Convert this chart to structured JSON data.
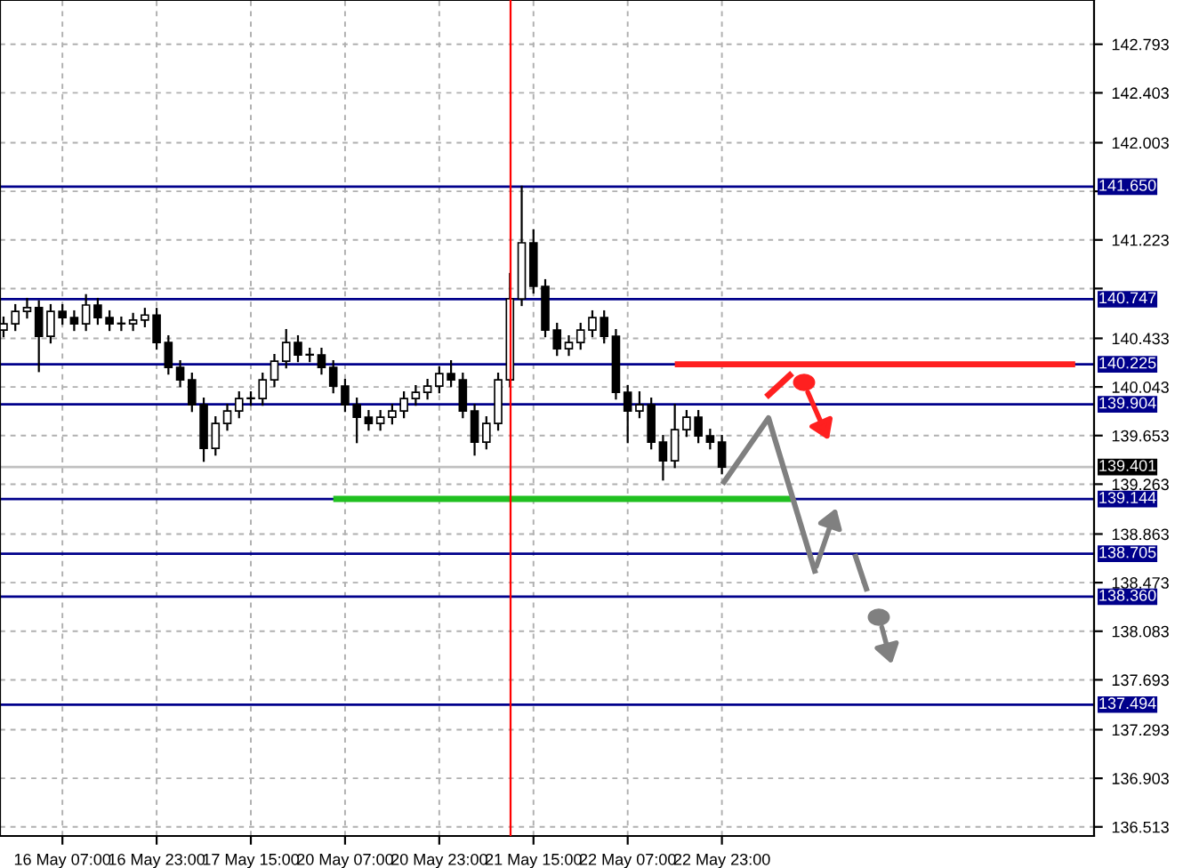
{
  "chart_data": {
    "type": "candlestick",
    "categories": [
      null,
      null,
      null,
      null,
      null,
      "16 May 07:00",
      null,
      null,
      null,
      null,
      null,
      null,
      null,
      "16 May 23:00",
      null,
      null,
      null,
      null,
      null,
      null,
      null,
      "17 May 15:00",
      null,
      null,
      null,
      null,
      null,
      null,
      null,
      "20 May 07:00",
      null,
      null,
      null,
      null,
      null,
      null,
      null,
      "20 May 23:00",
      null,
      null,
      null,
      null,
      null,
      null,
      null,
      "21 May 15:00",
      null,
      null,
      null,
      null,
      null,
      null,
      null,
      "22 May 07:00",
      null,
      null,
      null,
      null,
      null,
      null,
      null,
      "22 May 23:00",
      null,
      null,
      null,
      null,
      null,
      null,
      null,
      null,
      null,
      null,
      null,
      null,
      null,
      null,
      null,
      null,
      null,
      null,
      null,
      null,
      null,
      null,
      null,
      null,
      null,
      null,
      null,
      null,
      null,
      null,
      null
    ],
    "ohlc": [
      [
        140.5,
        140.6,
        140.45,
        140.55
      ],
      [
        140.55,
        140.7,
        140.5,
        140.65
      ],
      [
        140.65,
        140.75,
        140.6,
        140.68
      ],
      [
        140.68,
        140.73,
        140.17,
        140.45
      ],
      [
        140.45,
        140.7,
        140.4,
        140.65
      ],
      [
        140.65,
        140.7,
        140.55,
        140.6
      ],
      [
        140.6,
        140.65,
        140.5,
        140.55
      ],
      [
        140.55,
        140.78,
        140.5,
        140.7
      ],
      [
        140.7,
        140.75,
        140.55,
        140.6
      ],
      [
        140.6,
        140.65,
        140.5,
        140.55
      ],
      [
        140.55,
        140.6,
        140.5,
        140.55
      ],
      [
        140.55,
        140.63,
        140.5,
        140.58
      ],
      [
        140.58,
        140.67,
        140.53,
        140.62
      ],
      [
        140.62,
        140.67,
        140.35,
        140.4
      ],
      [
        140.4,
        140.45,
        140.15,
        140.2
      ],
      [
        140.2,
        140.25,
        140.05,
        140.1
      ],
      [
        140.1,
        140.15,
        139.85,
        139.9
      ],
      [
        139.9,
        139.95,
        139.45,
        139.55
      ],
      [
        139.55,
        139.8,
        139.5,
        139.75
      ],
      [
        139.75,
        139.9,
        139.7,
        139.85
      ],
      [
        139.85,
        140.0,
        139.8,
        139.95
      ],
      [
        139.95,
        140.0,
        139.9,
        139.95
      ],
      [
        139.95,
        140.15,
        139.9,
        140.1
      ],
      [
        140.1,
        140.3,
        140.05,
        140.25
      ],
      [
        140.25,
        140.5,
        140.2,
        140.4
      ],
      [
        140.4,
        140.45,
        140.25,
        140.3
      ],
      [
        140.3,
        140.35,
        140.25,
        140.3
      ],
      [
        140.3,
        140.35,
        140.15,
        140.2
      ],
      [
        140.2,
        140.25,
        140.0,
        140.05
      ],
      [
        140.05,
        140.1,
        139.85,
        139.9
      ],
      [
        139.9,
        139.95,
        139.6,
        139.8
      ],
      [
        139.8,
        139.85,
        139.7,
        139.75
      ],
      [
        139.75,
        139.85,
        139.7,
        139.8
      ],
      [
        139.8,
        139.9,
        139.75,
        139.85
      ],
      [
        139.85,
        140.0,
        139.8,
        139.95
      ],
      [
        139.95,
        140.05,
        139.9,
        140.0
      ],
      [
        140.0,
        140.1,
        139.95,
        140.05
      ],
      [
        140.05,
        140.2,
        140.0,
        140.15
      ],
      [
        140.15,
        140.25,
        140.05,
        140.1
      ],
      [
        140.1,
        140.15,
        139.8,
        139.85
      ],
      [
        139.85,
        139.9,
        139.5,
        139.6
      ],
      [
        139.6,
        139.8,
        139.55,
        139.75
      ],
      [
        139.75,
        140.15,
        139.7,
        140.1
      ],
      [
        140.1,
        140.95,
        140.05,
        140.75
      ],
      [
        140.75,
        141.65,
        140.7,
        141.2
      ],
      [
        141.2,
        141.3,
        140.8,
        140.85
      ],
      [
        140.85,
        140.9,
        140.45,
        140.5
      ],
      [
        140.5,
        140.55,
        140.3,
        140.35
      ],
      [
        140.35,
        140.45,
        140.3,
        140.4
      ],
      [
        140.4,
        140.55,
        140.35,
        140.5
      ],
      [
        140.5,
        140.65,
        140.45,
        140.6
      ],
      [
        140.6,
        140.65,
        140.4,
        140.45
      ],
      [
        140.45,
        140.5,
        139.95,
        140.0
      ],
      [
        140.0,
        140.05,
        139.6,
        139.85
      ],
      [
        139.85,
        140.0,
        139.8,
        139.9
      ],
      [
        139.9,
        139.95,
        139.55,
        139.6
      ],
      [
        139.6,
        139.65,
        139.3,
        139.45
      ],
      [
        139.45,
        139.9,
        139.4,
        139.7
      ],
      [
        139.7,
        139.85,
        139.65,
        139.8
      ],
      [
        139.8,
        139.85,
        139.6,
        139.65
      ],
      [
        139.65,
        139.7,
        139.55,
        139.6
      ],
      [
        139.6,
        139.65,
        139.35,
        139.4
      ],
      null,
      null,
      null,
      null,
      null,
      null,
      null,
      null,
      null,
      null,
      null,
      null,
      null,
      null,
      null,
      null,
      null,
      null,
      null,
      null,
      null,
      null,
      null,
      null,
      null,
      null,
      null,
      null,
      null,
      null,
      null
    ],
    "ylim": [
      136.44,
      143.148
    ],
    "yticks": [
      142.793,
      142.403,
      142.003,
      {
        "value": 141.613,
        "label": null
      },
      141.223,
      {
        "value": 140.833,
        "label": null
      },
      140.433,
      140.043,
      139.653,
      139.263,
      138.863,
      138.473,
      138.083,
      137.693,
      137.293,
      136.903,
      136.513
    ],
    "ref_lines": [
      {
        "axis": "y",
        "value": 141.65,
        "label": "141.650",
        "color": "#00008b"
      },
      {
        "axis": "y",
        "value": 140.747,
        "label": "140.747",
        "color": "#00008b"
      },
      {
        "axis": "y",
        "value": 140.225,
        "label": "140.225",
        "color": "#00008b"
      },
      {
        "axis": "y",
        "value": 139.904,
        "label": "139.904",
        "color": "#00008b"
      },
      {
        "axis": "y",
        "value": 139.401,
        "label": "139.401",
        "color": "#c0c0c0"
      },
      {
        "axis": "y",
        "value": 139.144,
        "label": "139.144",
        "color": "#00008b"
      },
      {
        "axis": "y",
        "value": 138.705,
        "label": "138.705",
        "color": "#00008b"
      },
      {
        "axis": "y",
        "value": 138.36,
        "label": "138.360",
        "color": "#00008b"
      },
      {
        "axis": "y",
        "value": 137.494,
        "label": "137.494",
        "color": "#00008b"
      }
    ],
    "series": [
      {
        "type": "line",
        "color": "#20c020",
        "values": [
          null,
          null,
          null,
          null,
          null,
          null,
          null,
          null,
          null,
          null,
          null,
          null,
          null,
          null,
          null,
          null,
          null,
          null,
          null,
          null,
          null,
          null,
          null,
          null,
          null,
          null,
          null,
          null,
          139.144,
          139.144,
          139.144,
          139.144,
          139.144,
          139.144,
          139.144,
          139.144,
          139.144,
          139.144,
          139.144,
          139.144,
          139.144,
          139.144,
          139.144,
          139.144,
          139.144,
          139.144,
          139.144,
          139.144,
          139.144,
          139.144,
          139.144,
          139.144,
          139.144,
          139.144,
          139.144,
          139.144,
          139.144,
          139.144,
          139.144,
          139.144,
          139.144,
          139.144,
          139.144,
          139.144,
          139.144,
          139.144,
          139.144,
          139.144,
          null,
          null,
          null,
          null,
          null,
          null,
          null,
          null,
          null,
          null,
          null,
          null,
          null,
          null,
          null,
          null,
          null,
          null,
          null,
          null,
          null,
          null,
          null,
          null,
          null
        ]
      },
      {
        "type": "line",
        "color": "#ff2020",
        "values": [
          null,
          null,
          null,
          null,
          null,
          null,
          null,
          null,
          null,
          null,
          null,
          null,
          null,
          null,
          null,
          null,
          null,
          null,
          null,
          null,
          null,
          null,
          null,
          null,
          null,
          null,
          null,
          null,
          null,
          null,
          null,
          null,
          null,
          null,
          null,
          null,
          null,
          null,
          null,
          null,
          null,
          null,
          null,
          null,
          null,
          null,
          null,
          null,
          null,
          null,
          null,
          null,
          null,
          null,
          null,
          null,
          null,
          140.225,
          140.225,
          140.225,
          140.225,
          140.225,
          140.225,
          140.225,
          140.225,
          140.225,
          140.225,
          140.225,
          140.225,
          140.225,
          140.225,
          140.225,
          140.225,
          140.225,
          140.225,
          140.225,
          140.225,
          140.225,
          140.225,
          140.225,
          140.225,
          140.225,
          140.225,
          140.225,
          140.225,
          140.225,
          140.225,
          140.225,
          140.225,
          140.225,
          140.225,
          140.225,
          null
        ]
      }
    ],
    "grid": true
  }
}
